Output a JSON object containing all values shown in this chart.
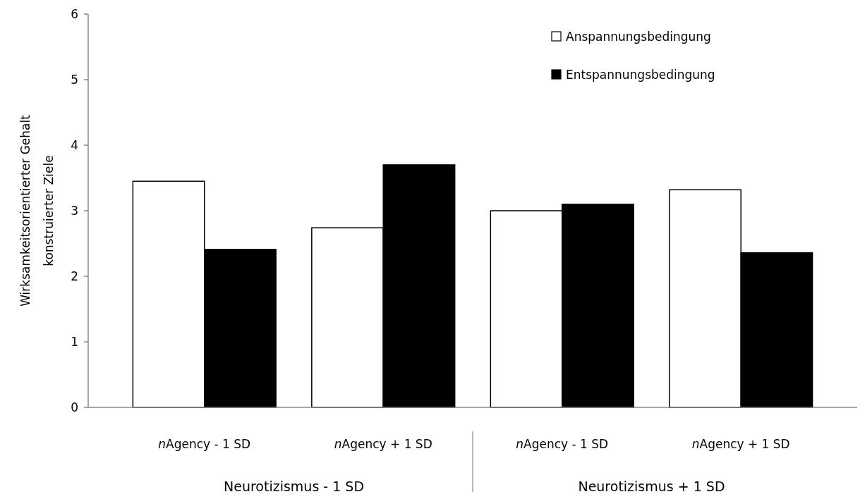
{
  "chart_data": {
    "type": "bar",
    "ylabel": "Wirksamkeitsorientierter Gehalt\nkonstruierter Ziele",
    "categories": [
      "nAgency - 1 SD",
      "nAgency + 1 SD",
      "nAgency - 1 SD",
      "nAgency + 1 SD"
    ],
    "series": [
      {
        "name": "Anspannungsbedingung",
        "color": "#ffffff",
        "values": [
          3.45,
          2.74,
          3.0,
          3.32
        ]
      },
      {
        "name": "Entspannungsbedingung",
        "color": "#000000",
        "values": [
          2.41,
          3.7,
          3.1,
          2.36
        ]
      }
    ],
    "ylim": [
      0,
      6
    ],
    "yticks": [
      0,
      1,
      2,
      3,
      4,
      5,
      6
    ],
    "grid": false,
    "legend": "top right",
    "annotations": [
      "Neurotizismus - 1 SD",
      "Neurotizismus + 1 SD"
    ]
  }
}
